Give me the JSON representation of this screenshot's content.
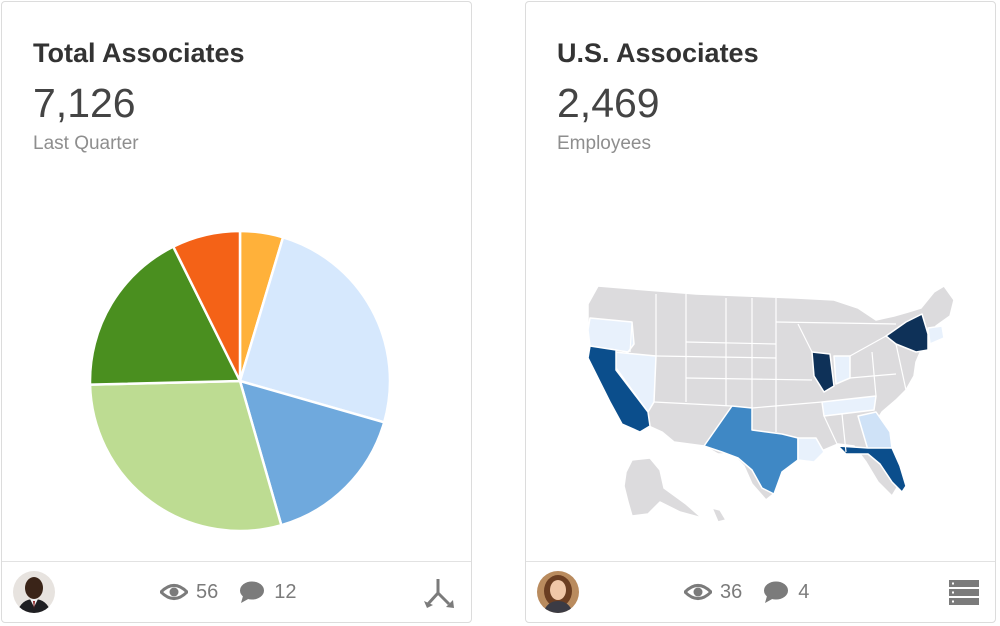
{
  "cards": [
    {
      "title": "Total Associates",
      "metric": "7,126",
      "subtitle": "Last Quarter",
      "views": "56",
      "comments": "12",
      "avatar_icon": "person-avatar-icon",
      "action_icon": "split-arrows-icon"
    },
    {
      "title": "U.S. Associates",
      "metric": "2,469",
      "subtitle": "Employees",
      "views": "36",
      "comments": "4",
      "avatar_icon": "person-avatar-icon",
      "action_icon": "list-view-icon"
    }
  ],
  "chart_data": {
    "type": "pie",
    "values": [
      4.8,
      25.7,
      16.7,
      30.1,
      18.7,
      7.6
    ],
    "colors": [
      "#ffb13a",
      "#d6e8fd",
      "#6fa9dd",
      "#bddc92",
      "#4a8f1f",
      "#f46217"
    ]
  },
  "map": {
    "colors": {
      "base": "#dcdbdd",
      "lightest": "#e8f1fc",
      "light": "#cfe2f7",
      "mid": "#3f88c5",
      "dark": "#0b4e8c",
      "darkest": "#0e3158"
    }
  },
  "colors": {
    "border": "#dcdcdc",
    "title": "#333333",
    "muted": "#8e8e8e",
    "icon": "#7b7b7b"
  }
}
